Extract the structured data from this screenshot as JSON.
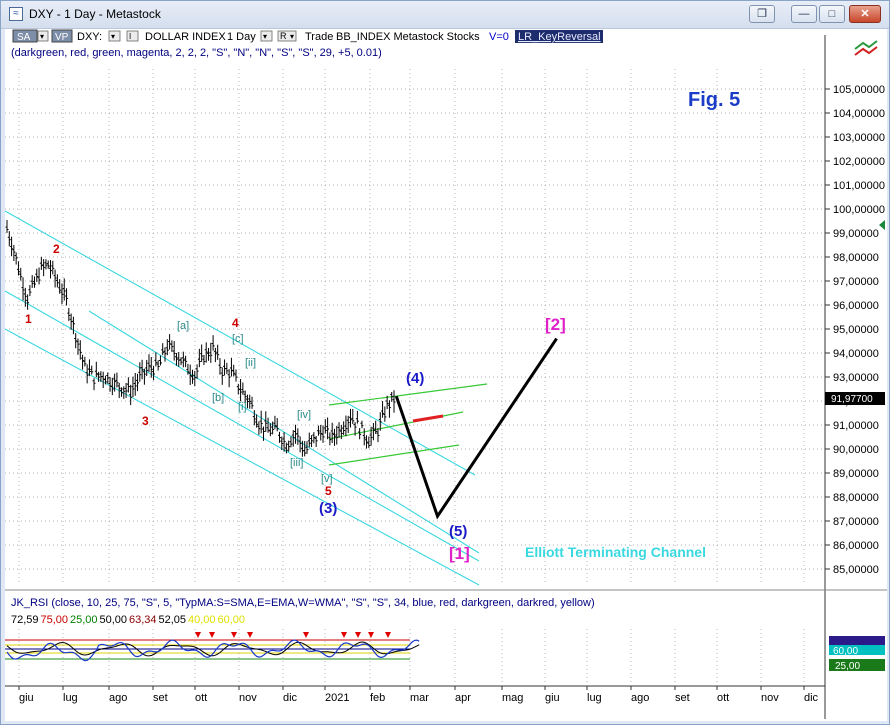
{
  "window": {
    "title": "DXY - 1 Day - Metastock",
    "buttons": {
      "restore": "❐",
      "minimize": "—",
      "maximize": "□",
      "close": "✕"
    }
  },
  "toolbar": {
    "sa": "SA",
    "vp": "VP",
    "symbol": "DXY:",
    "name": "DOLLAR INDEX",
    "period": "1 Day",
    "r_label": "R",
    "trade": "Trade",
    "expert": "BB_INDEX Metastock Stocks",
    "v": "V=0",
    "indicator": "LR_KeyReversal",
    "params": "(darkgreen, red, green, magenta, 2, 2, 2, \"S\", \"N\", \"N\", \"S\", \"S\", 29, +5, 0.01)"
  },
  "annotations": {
    "fig": "Fig. 5",
    "channel": "Elliott Terminating Channel",
    "wave_red": [
      "1",
      "2",
      "3",
      "4",
      "5"
    ],
    "wave_sub": [
      "[a]",
      "[b]",
      "[c]",
      "[i]",
      "[ii]",
      "[iii]",
      "[iv]",
      "[v]"
    ],
    "wave_blue": [
      "(3)",
      "(4)",
      "(5)"
    ],
    "wave_magenta": [
      "[1]",
      "[2]"
    ]
  },
  "price_axis": {
    "labels": [
      "105,00000",
      "104,00000",
      "103,00000",
      "102,00000",
      "101,00000",
      "100,00000",
      "99,00000",
      "98,00000",
      "97,00000",
      "96,00000",
      "95,00000",
      "94,00000",
      "93,00000",
      "92,00000",
      "91,00000",
      "90,00000",
      "89,00000",
      "88,00000",
      "87,00000",
      "86,00000",
      "85,00000"
    ],
    "last_price": "91,97700"
  },
  "rsi_panel": {
    "params": "JK_RSI   (close, 10, 25, 75, \"S\", 5, \"TypMA:S=SMA,E=EMA,W=WMA\", \"S\", \"S\", 34, blue, red, darkgreen, darkred, yellow)",
    "values": [
      {
        "text": "72,59",
        "color": "#000000"
      },
      {
        "text": "75,00",
        "color": "#cc0000"
      },
      {
        "text": "25,00",
        "color": "#008000"
      },
      {
        "text": "50,00",
        "color": "#000000"
      },
      {
        "text": "63,34",
        "color": "#8b0000"
      },
      {
        "text": "52,05",
        "color": "#000000"
      },
      {
        "text": "40,00",
        "color": "#e0e000"
      },
      {
        "text": "60,00",
        "color": "#e0e000"
      }
    ],
    "badge_top": "60,00",
    "badge_bottom": "25,00"
  },
  "time_axis": {
    "labels": [
      "giu",
      "lug",
      "ago",
      "set",
      "ott",
      "nov",
      "dic",
      "2021",
      "feb",
      "mar",
      "apr",
      "mag",
      "giu",
      "lug",
      "ago",
      "set",
      "ott",
      "nov",
      "dic"
    ]
  },
  "chart_data": {
    "type": "line",
    "title": "DXY - 1 Day",
    "ylabel": "",
    "ylim": [
      84.5,
      105.5
    ],
    "x_unit": "trading day index (0 = early June 2020)",
    "price_path": [
      {
        "x": 0,
        "y": 99.2
      },
      {
        "x": 3,
        "y": 98.3
      },
      {
        "x": 6,
        "y": 97.2
      },
      {
        "x": 9,
        "y": 96.3
      },
      {
        "x": 12,
        "y": 96.9
      },
      {
        "x": 15,
        "y": 97.5
      },
      {
        "x": 18,
        "y": 97.7
      },
      {
        "x": 22,
        "y": 97.0
      },
      {
        "x": 26,
        "y": 96.2
      },
      {
        "x": 30,
        "y": 94.8
      },
      {
        "x": 34,
        "y": 93.4
      },
      {
        "x": 38,
        "y": 93.0
      },
      {
        "x": 42,
        "y": 93.1
      },
      {
        "x": 46,
        "y": 92.8
      },
      {
        "x": 50,
        "y": 92.6
      },
      {
        "x": 54,
        "y": 92.4
      },
      {
        "x": 58,
        "y": 93.0
      },
      {
        "x": 62,
        "y": 93.4
      },
      {
        "x": 66,
        "y": 93.4
      },
      {
        "x": 70,
        "y": 94.3
      },
      {
        "x": 74,
        "y": 94.0
      },
      {
        "x": 78,
        "y": 93.5
      },
      {
        "x": 82,
        "y": 93.1
      },
      {
        "x": 86,
        "y": 93.9
      },
      {
        "x": 90,
        "y": 94.2
      },
      {
        "x": 94,
        "y": 93.3
      },
      {
        "x": 98,
        "y": 93.2
      },
      {
        "x": 102,
        "y": 92.5
      },
      {
        "x": 106,
        "y": 92.0
      },
      {
        "x": 110,
        "y": 91.1
      },
      {
        "x": 114,
        "y": 90.8
      },
      {
        "x": 118,
        "y": 90.8
      },
      {
        "x": 122,
        "y": 90.2
      },
      {
        "x": 126,
        "y": 90.7
      },
      {
        "x": 130,
        "y": 89.9
      },
      {
        "x": 134,
        "y": 90.4
      },
      {
        "x": 138,
        "y": 90.8
      },
      {
        "x": 142,
        "y": 90.5
      },
      {
        "x": 146,
        "y": 90.9
      },
      {
        "x": 150,
        "y": 91.4
      },
      {
        "x": 154,
        "y": 90.9
      },
      {
        "x": 158,
        "y": 90.4
      },
      {
        "x": 162,
        "y": 90.8
      },
      {
        "x": 166,
        "y": 91.8
      },
      {
        "x": 170,
        "y": 92.2
      }
    ],
    "forecast_path": [
      {
        "x": 170,
        "y": 92.2
      },
      {
        "x": 188,
        "y": 87.2
      },
      {
        "x": 240,
        "y": 94.6
      }
    ]
  }
}
